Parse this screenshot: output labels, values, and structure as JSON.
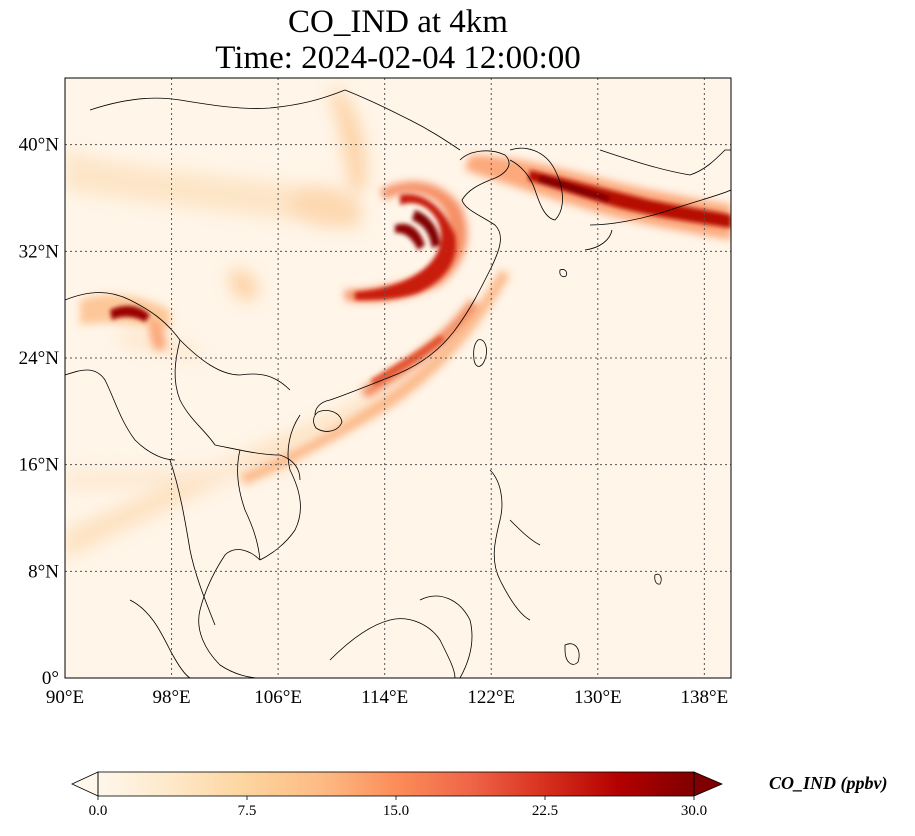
{
  "title": {
    "line1": "CO_IND at 4km",
    "line2": "Time: 2024-02-04 12:00:00"
  },
  "map": {
    "lon_range": [
      90,
      140
    ],
    "lat_range": [
      0,
      45
    ],
    "lon_ticks": [
      {
        "value": 90,
        "label": "90°E"
      },
      {
        "value": 98,
        "label": "98°E"
      },
      {
        "value": 106,
        "label": "106°E"
      },
      {
        "value": 114,
        "label": "114°E"
      },
      {
        "value": 122,
        "label": "122°E"
      },
      {
        "value": 130,
        "label": "130°E"
      },
      {
        "value": 138,
        "label": "138°E"
      }
    ],
    "lat_ticks": [
      {
        "value": 0,
        "label": "0°"
      },
      {
        "value": 8,
        "label": "8°N"
      },
      {
        "value": 16,
        "label": "16°N"
      },
      {
        "value": 24,
        "label": "24°N"
      },
      {
        "value": 32,
        "label": "32°N"
      },
      {
        "value": 40,
        "label": "40°N"
      }
    ],
    "gridlines": "dotted",
    "field_description_colormap": "OrRd",
    "background_color": "#fff5e8"
  },
  "colorbar": {
    "label": "CO_IND (ppbv)",
    "min": 0,
    "max": 30,
    "extend": "both",
    "ticks": [
      "0.0",
      "7.5",
      "15.0",
      "22.5",
      "30.0"
    ],
    "colors": [
      "#fff7ec",
      "#fee8c8",
      "#fdd49e",
      "#fdbb84",
      "#fc8d59",
      "#ef6548",
      "#d7301f",
      "#b30000",
      "#7f0000"
    ]
  }
}
